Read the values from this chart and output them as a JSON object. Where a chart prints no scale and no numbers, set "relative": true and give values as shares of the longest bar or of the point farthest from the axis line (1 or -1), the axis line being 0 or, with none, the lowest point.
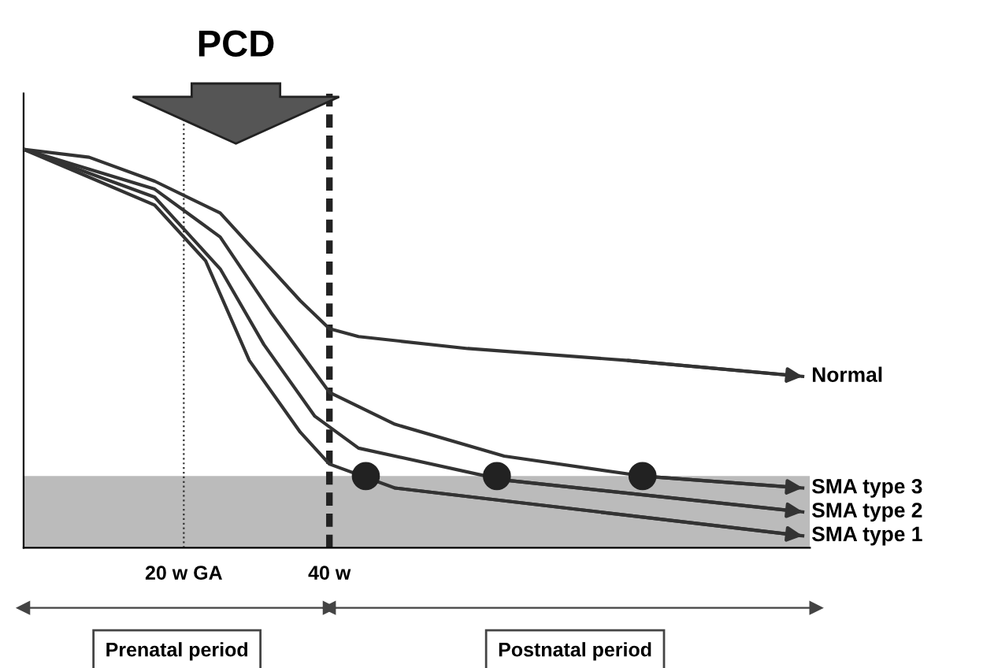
{
  "chart_data": {
    "type": "line",
    "relative": true,
    "xlim": [
      -2,
      106
    ],
    "xticks": [
      {
        "value": 20,
        "label": "20 w GA"
      },
      {
        "value": 40,
        "label": "40 w"
      }
    ],
    "series": [
      {
        "name": "Normal",
        "color": "#333333",
        "x": [
          -2,
          7,
          16,
          25,
          31,
          36,
          40,
          44,
          59,
          81,
          105
        ],
        "values": [
          1,
          0.98,
          0.92,
          0.84,
          0.72,
          0.62,
          0.55,
          0.53,
          0.5,
          0.47,
          0.43
        ]
      },
      {
        "name": "SMA type 3",
        "color": "#333333",
        "x": [
          -2,
          16,
          25,
          32,
          40,
          49,
          64,
          83,
          105
        ],
        "values": [
          1,
          0.9,
          0.78,
          0.59,
          0.39,
          0.31,
          0.23,
          0.18,
          0.15
        ]
      },
      {
        "name": "SMA type 2",
        "color": "#333333",
        "x": [
          -2,
          16,
          25,
          31,
          38,
          44,
          64,
          105
        ],
        "values": [
          1,
          0.88,
          0.7,
          0.51,
          0.33,
          0.25,
          0.17,
          0.09
        ]
      },
      {
        "name": "SMA type 1",
        "color": "#333333",
        "x": [
          -2,
          16,
          23,
          29,
          36,
          40,
          49,
          105
        ],
        "values": [
          1,
          0.86,
          0.72,
          0.47,
          0.29,
          0.21,
          0.15,
          0.03
        ]
      },
      {
        "type": "scatter",
        "marker": "circle",
        "color": "#222222",
        "x": [
          45,
          63,
          83
        ],
        "values": [
          0.18,
          0.18,
          0.18
        ]
      }
    ],
    "ref_lines": [
      {
        "axis": "x",
        "value": 20,
        "line_style": "dotted",
        "color": "#333333"
      },
      {
        "axis": "x",
        "value": 40,
        "line_style": "dashed",
        "color": "#222222"
      }
    ],
    "bands": [
      {
        "axis": "y",
        "from": 0,
        "to": 0.18,
        "color": "#bbbbbb"
      }
    ],
    "annotations": [
      "PCD",
      "Prenatal period",
      "Postnatal period"
    ],
    "marker": "none",
    "line_style": "solid",
    "grid": false,
    "legend": "right"
  }
}
